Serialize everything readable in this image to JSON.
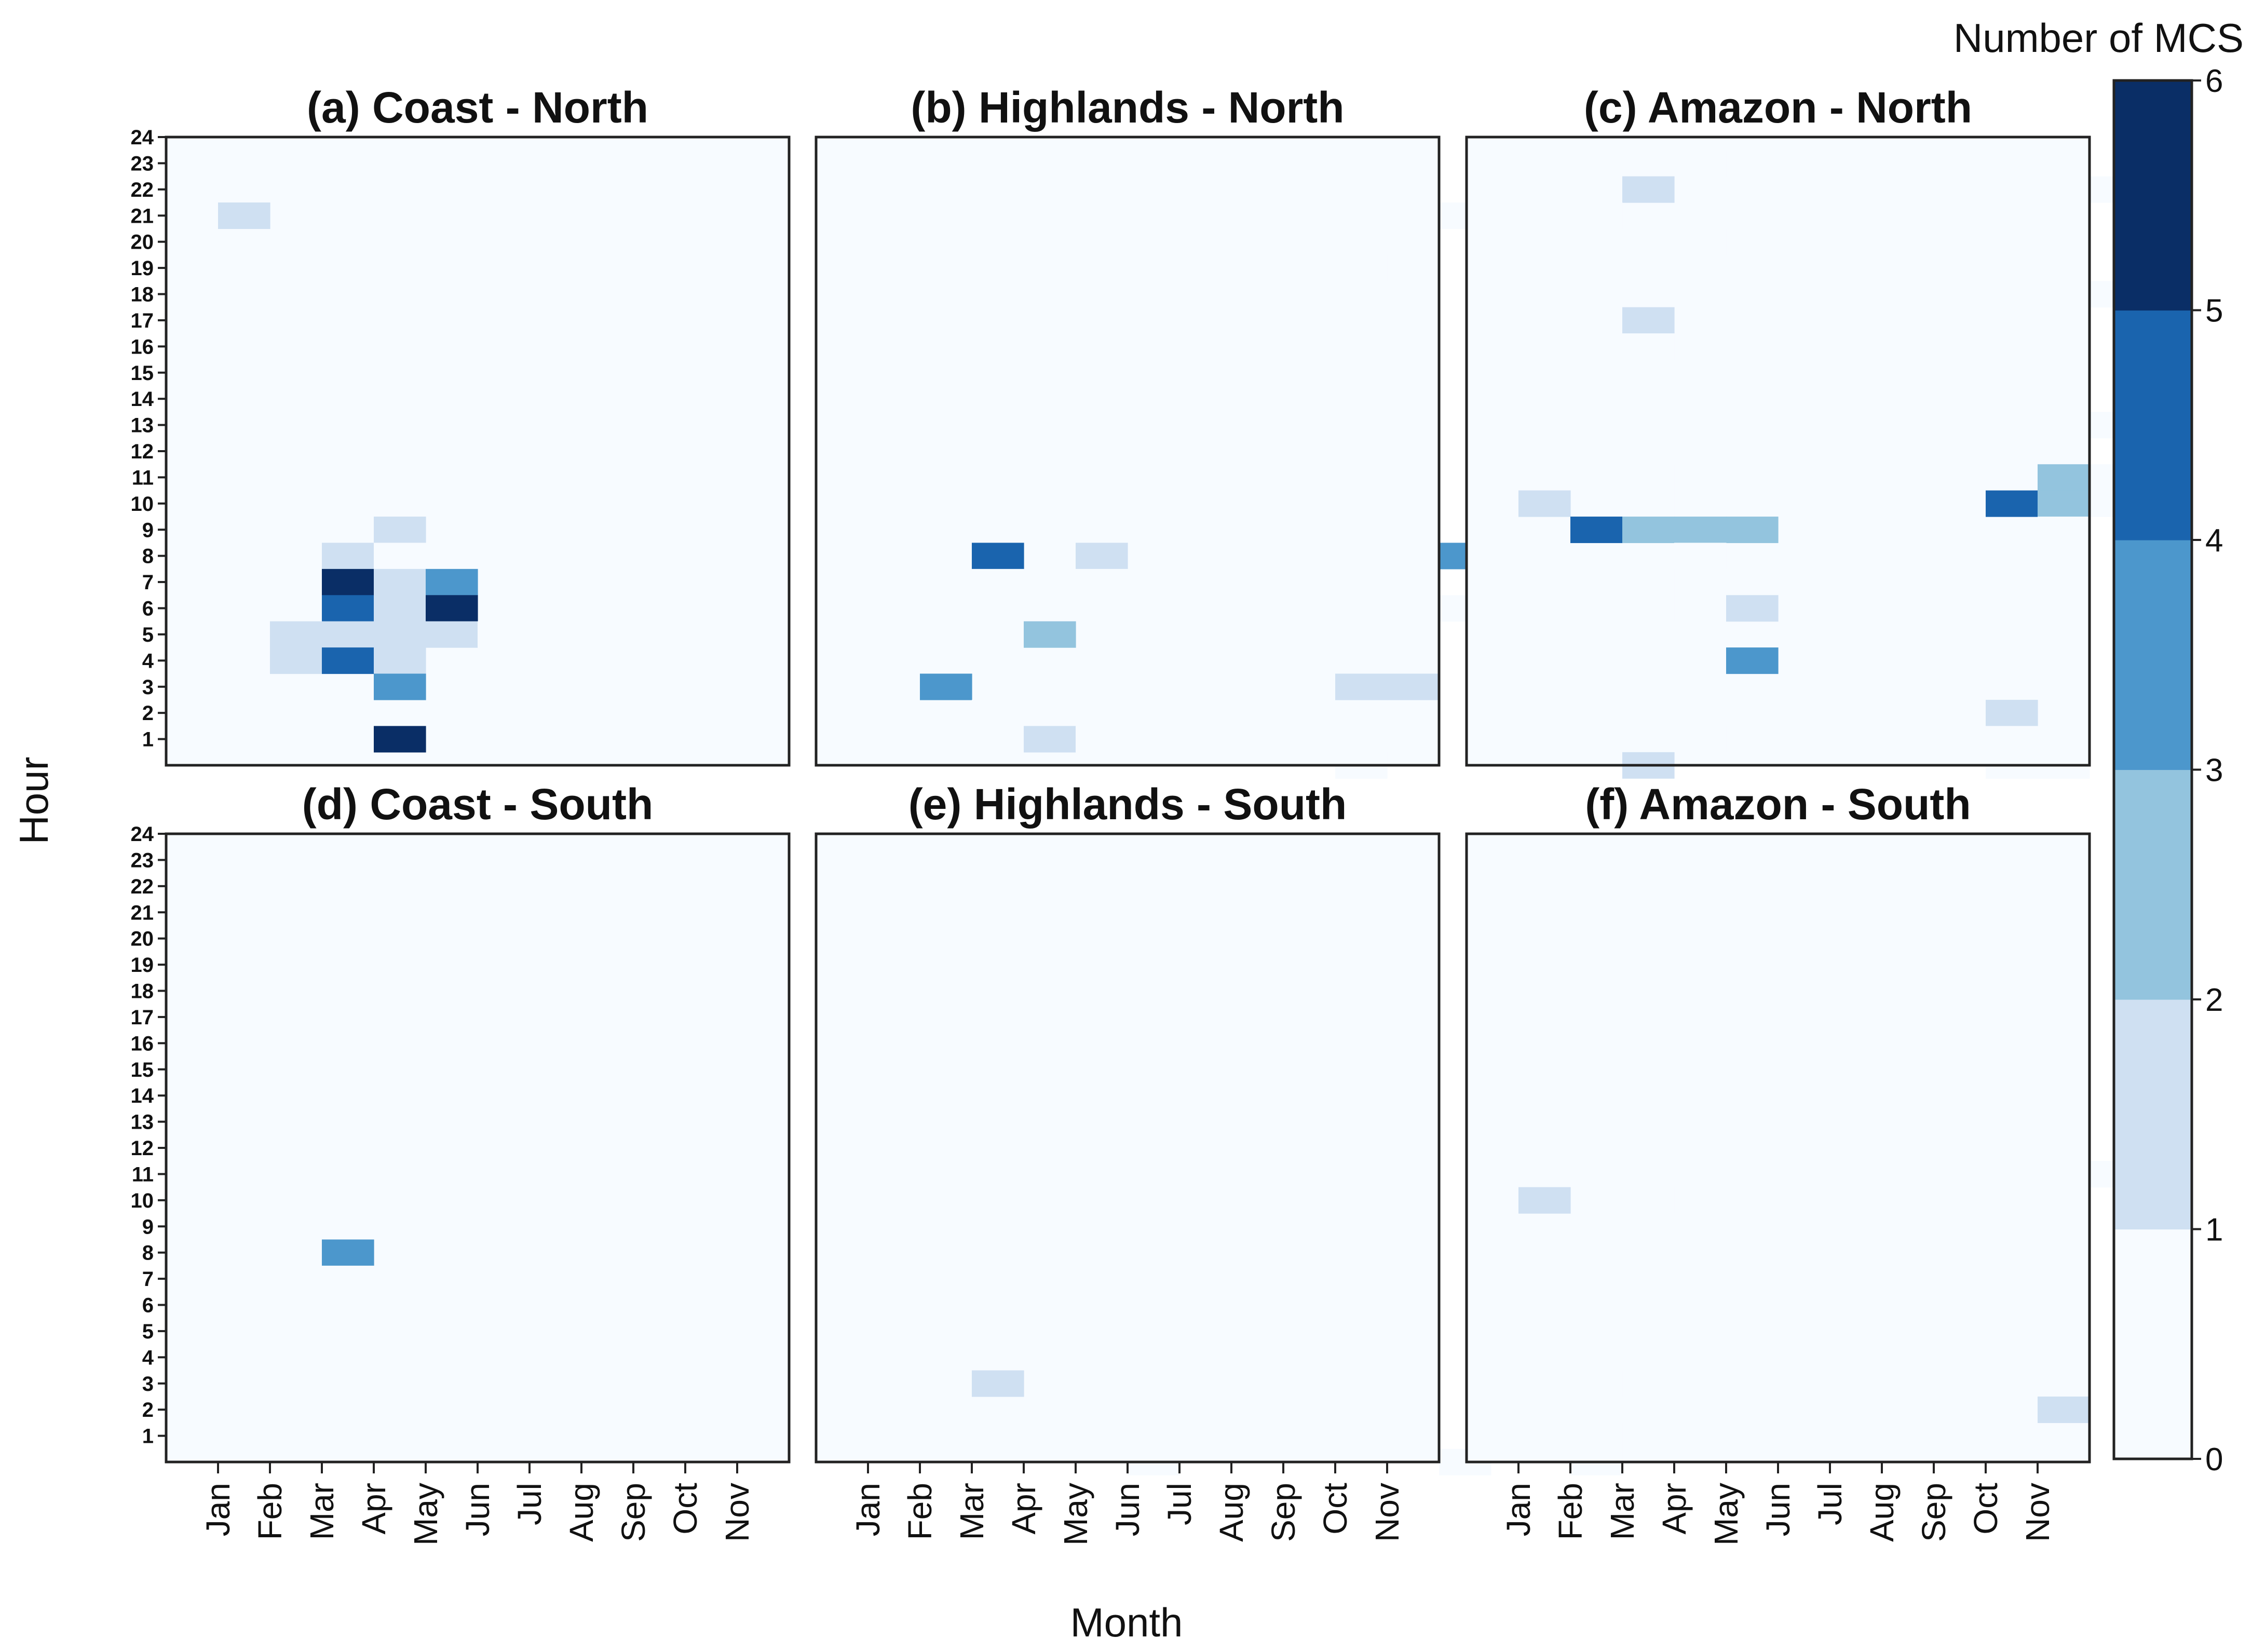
{
  "chart_data": {
    "type": "heatmap",
    "xlabel": "Month",
    "ylabel": "Hour",
    "month_ticks": [
      "Jan",
      "Feb",
      "Mar",
      "Apr",
      "May",
      "Jun",
      "Jul",
      "Aug",
      "Sep",
      "Oct",
      "Nov"
    ],
    "hour_ticks": [
      "1",
      "2",
      "3",
      "4",
      "5",
      "6",
      "7",
      "8",
      "9",
      "10",
      "11",
      "12",
      "13",
      "14",
      "15",
      "16",
      "17",
      "18",
      "19",
      "20",
      "21",
      "22",
      "23",
      "24"
    ],
    "month_range": [
      0,
      12
    ],
    "hour_range": [
      0,
      24
    ],
    "colorbar": {
      "title": "Number of MCS",
      "ticks": [
        "0",
        "1",
        "2",
        "3",
        "4",
        "5",
        "6"
      ],
      "colors": [
        "#f7fbff",
        "#cfe0f2",
        "#93c4de",
        "#4c97cc",
        "#1a64ae",
        "#0a2e66"
      ]
    },
    "panels": [
      {
        "title": "(a) Coast - North",
        "cells": [
          {
            "m": 2,
            "h": 23,
            "v": 1
          },
          {
            "m": 3,
            "h": 23,
            "v": 1
          },
          {
            "m": 1,
            "h": 21,
            "v": 2
          },
          {
            "m": 4,
            "h": 9,
            "v": 2
          },
          {
            "m": 3,
            "h": 8,
            "v": 2
          },
          {
            "m": 4,
            "h": 8,
            "v": 1
          },
          {
            "m": 2,
            "h": 7,
            "v": 1
          },
          {
            "m": 3,
            "h": 7,
            "v": 6
          },
          {
            "m": 4,
            "h": 7,
            "v": 2
          },
          {
            "m": 5,
            "h": 7,
            "v": 4
          },
          {
            "m": 3,
            "h": 6,
            "v": 5
          },
          {
            "m": 4,
            "h": 6,
            "v": 2
          },
          {
            "m": 5,
            "h": 6,
            "v": 6
          },
          {
            "m": 11,
            "h": 6,
            "v": 1
          },
          {
            "m": 1,
            "h": 5,
            "v": 1
          },
          {
            "m": 2,
            "h": 5,
            "v": 2
          },
          {
            "m": 3,
            "h": 5,
            "v": 2
          },
          {
            "m": 4,
            "h": 5,
            "v": 2
          },
          {
            "m": 5,
            "h": 5,
            "v": 2
          },
          {
            "m": 6,
            "h": 5,
            "v": 1
          },
          {
            "m": 2,
            "h": 4,
            "v": 2
          },
          {
            "m": 3,
            "h": 4,
            "v": 5
          },
          {
            "m": 4,
            "h": 4,
            "v": 2
          },
          {
            "m": 4,
            "h": 3,
            "v": 4
          },
          {
            "m": 2,
            "h": 2,
            "v": 1
          },
          {
            "m": 4,
            "h": 1,
            "v": 6
          }
        ]
      },
      {
        "title": "(b) Highlands - North",
        "cells": [
          {
            "m": 2,
            "h": 23,
            "v": 1
          },
          {
            "m": 3,
            "h": 22,
            "v": 1
          },
          {
            "m": 4,
            "h": 22,
            "v": 1
          },
          {
            "m": 11,
            "h": 22,
            "v": 1
          },
          {
            "m": 12,
            "h": 21,
            "v": 1
          },
          {
            "m": 10,
            "h": 19,
            "v": 1
          },
          {
            "m": 3,
            "h": 9,
            "v": 1
          },
          {
            "m": 10,
            "h": 9,
            "v": 1
          },
          {
            "m": 11,
            "h": 9,
            "v": 1
          },
          {
            "m": 3,
            "h": 8,
            "v": 5
          },
          {
            "m": 5,
            "h": 8,
            "v": 2
          },
          {
            "m": 12,
            "h": 8,
            "v": 4
          },
          {
            "m": 3,
            "h": 7,
            "v": 1
          },
          {
            "m": 5,
            "h": 7,
            "v": 1
          },
          {
            "m": 1,
            "h": 6,
            "v": 1
          },
          {
            "m": 3,
            "h": 6,
            "v": 1
          },
          {
            "m": 12,
            "h": 6,
            "v": 1
          },
          {
            "m": 4,
            "h": 5,
            "v": 3
          },
          {
            "m": 11,
            "h": 5,
            "v": 1
          },
          {
            "m": 2,
            "h": 3,
            "v": 4
          },
          {
            "m": 5,
            "h": 3,
            "v": 1
          },
          {
            "m": 10,
            "h": 3,
            "v": 2
          },
          {
            "m": 11,
            "h": 3,
            "v": 2
          },
          {
            "m": 3,
            "h": 2,
            "v": 1
          },
          {
            "m": 4,
            "h": 2,
            "v": 1
          },
          {
            "m": 5,
            "h": 2,
            "v": 1
          },
          {
            "m": 2,
            "h": 1,
            "v": 1
          },
          {
            "m": 4,
            "h": 1,
            "v": 2
          },
          {
            "m": 5,
            "h": 1,
            "v": 1
          },
          {
            "m": 11,
            "h": 1,
            "v": 1
          },
          {
            "m": 10,
            "h": 0,
            "v": 1
          }
        ]
      },
      {
        "title": "(c) Amazon - North",
        "cells": [
          {
            "m": 2,
            "h": 23,
            "v": 1
          },
          {
            "m": 3,
            "h": 23,
            "v": 1
          },
          {
            "m": 4,
            "h": 23,
            "v": 1
          },
          {
            "m": 3,
            "h": 22,
            "v": 2
          },
          {
            "m": 10,
            "h": 22,
            "v": 1
          },
          {
            "m": 12,
            "h": 22,
            "v": 1
          },
          {
            "m": 2,
            "h": 21,
            "v": 1
          },
          {
            "m": 11,
            "h": 21,
            "v": 1
          },
          {
            "m": 4,
            "h": 20,
            "v": 1
          },
          {
            "m": 9,
            "h": 20,
            "v": 1
          },
          {
            "m": 1,
            "h": 19,
            "v": 1
          },
          {
            "m": 5,
            "h": 18,
            "v": 1
          },
          {
            "m": 12,
            "h": 18,
            "v": 1
          },
          {
            "m": 3,
            "h": 17,
            "v": 2
          },
          {
            "m": 3,
            "h": 16,
            "v": 1
          },
          {
            "m": 11,
            "h": 15,
            "v": 1
          },
          {
            "m": 1,
            "h": 13,
            "v": 1
          },
          {
            "m": 10,
            "h": 13,
            "v": 1
          },
          {
            "m": 12,
            "h": 13,
            "v": 1
          },
          {
            "m": 4,
            "h": 12,
            "v": 1
          },
          {
            "m": 5,
            "h": 12,
            "v": 1
          },
          {
            "m": 3,
            "h": 11,
            "v": 1
          },
          {
            "m": 6,
            "h": 11,
            "v": 1
          },
          {
            "m": 11,
            "h": 11,
            "v": 3
          },
          {
            "m": 12,
            "h": 11,
            "v": 1
          },
          {
            "m": 1,
            "h": 10,
            "v": 2
          },
          {
            "m": 3,
            "h": 10,
            "v": 1
          },
          {
            "m": 10,
            "h": 10,
            "v": 5
          },
          {
            "m": 11,
            "h": 10,
            "v": 3
          },
          {
            "m": 12,
            "h": 10,
            "v": 1
          },
          {
            "m": 2,
            "h": 9,
            "v": 5
          },
          {
            "m": 3,
            "h": 9,
            "v": 3
          },
          {
            "m": 4,
            "h": 9,
            "v": 3
          },
          {
            "m": 5,
            "h": 9,
            "v": 3
          },
          {
            "m": 11,
            "h": 9,
            "v": 1
          },
          {
            "m": 4,
            "h": 8,
            "v": 1
          },
          {
            "m": 1,
            "h": 7,
            "v": 1
          },
          {
            "m": 3,
            "h": 7,
            "v": 1
          },
          {
            "m": 3,
            "h": 6,
            "v": 1
          },
          {
            "m": 5,
            "h": 6,
            "v": 2
          },
          {
            "m": 5,
            "h": 4,
            "v": 4
          },
          {
            "m": 8,
            "h": 3,
            "v": 1
          },
          {
            "m": 10,
            "h": 2,
            "v": 2
          },
          {
            "m": 4,
            "h": 1,
            "v": 1
          },
          {
            "m": 10,
            "h": 1,
            "v": 1
          },
          {
            "m": 3,
            "h": 0,
            "v": 2
          },
          {
            "m": 10,
            "h": 0,
            "v": 1
          },
          {
            "m": 11,
            "h": 0,
            "v": 1
          }
        ]
      },
      {
        "title": "(d) Coast - South",
        "cells": [
          {
            "m": 3,
            "h": 22,
            "v": 1
          },
          {
            "m": 3,
            "h": 8,
            "v": 4
          },
          {
            "m": 3,
            "h": 7,
            "v": 1
          }
        ]
      },
      {
        "title": "(e) Highlands - South",
        "cells": [
          {
            "m": 5,
            "h": 23,
            "v": 1
          },
          {
            "m": 1,
            "h": 22,
            "v": 1
          },
          {
            "m": 4,
            "h": 21,
            "v": 1
          },
          {
            "m": 3,
            "h": 7,
            "v": 1
          },
          {
            "m": 3,
            "h": 6,
            "v": 1
          },
          {
            "m": 2,
            "h": 5,
            "v": 1
          },
          {
            "m": 5,
            "h": 5,
            "v": 1
          },
          {
            "m": 1,
            "h": 4,
            "v": 1
          },
          {
            "m": 3,
            "h": 3,
            "v": 2
          },
          {
            "m": 11,
            "h": 3,
            "v": 1
          },
          {
            "m": 11,
            "h": 2,
            "v": 1
          },
          {
            "m": 3,
            "h": 1,
            "v": 1
          },
          {
            "m": 10,
            "h": 1,
            "v": 1
          },
          {
            "m": 11,
            "h": 1,
            "v": 1
          },
          {
            "m": 6,
            "h": 0,
            "v": 1
          },
          {
            "m": 12,
            "h": 0,
            "v": 1
          }
        ]
      },
      {
        "title": "(f) Amazon - South",
        "cells": [
          {
            "m": 10,
            "h": 20,
            "v": 1
          },
          {
            "m": 4,
            "h": 11,
            "v": 1
          },
          {
            "m": 5,
            "h": 11,
            "v": 1
          },
          {
            "m": 6,
            "h": 11,
            "v": 1
          },
          {
            "m": 12,
            "h": 11,
            "v": 1
          },
          {
            "m": 1,
            "h": 10,
            "v": 2
          },
          {
            "m": 3,
            "h": 10,
            "v": 1
          },
          {
            "m": 9,
            "h": 10,
            "v": 1
          },
          {
            "m": 11,
            "h": 10,
            "v": 1
          },
          {
            "m": 1,
            "h": 8,
            "v": 1
          },
          {
            "m": 2,
            "h": 3,
            "v": 1
          },
          {
            "m": 10,
            "h": 3,
            "v": 1
          },
          {
            "m": 11,
            "h": 2,
            "v": 2
          },
          {
            "m": 2,
            "h": 1,
            "v": 1
          },
          {
            "m": 2,
            "h": 0,
            "v": 1
          }
        ]
      }
    ]
  }
}
